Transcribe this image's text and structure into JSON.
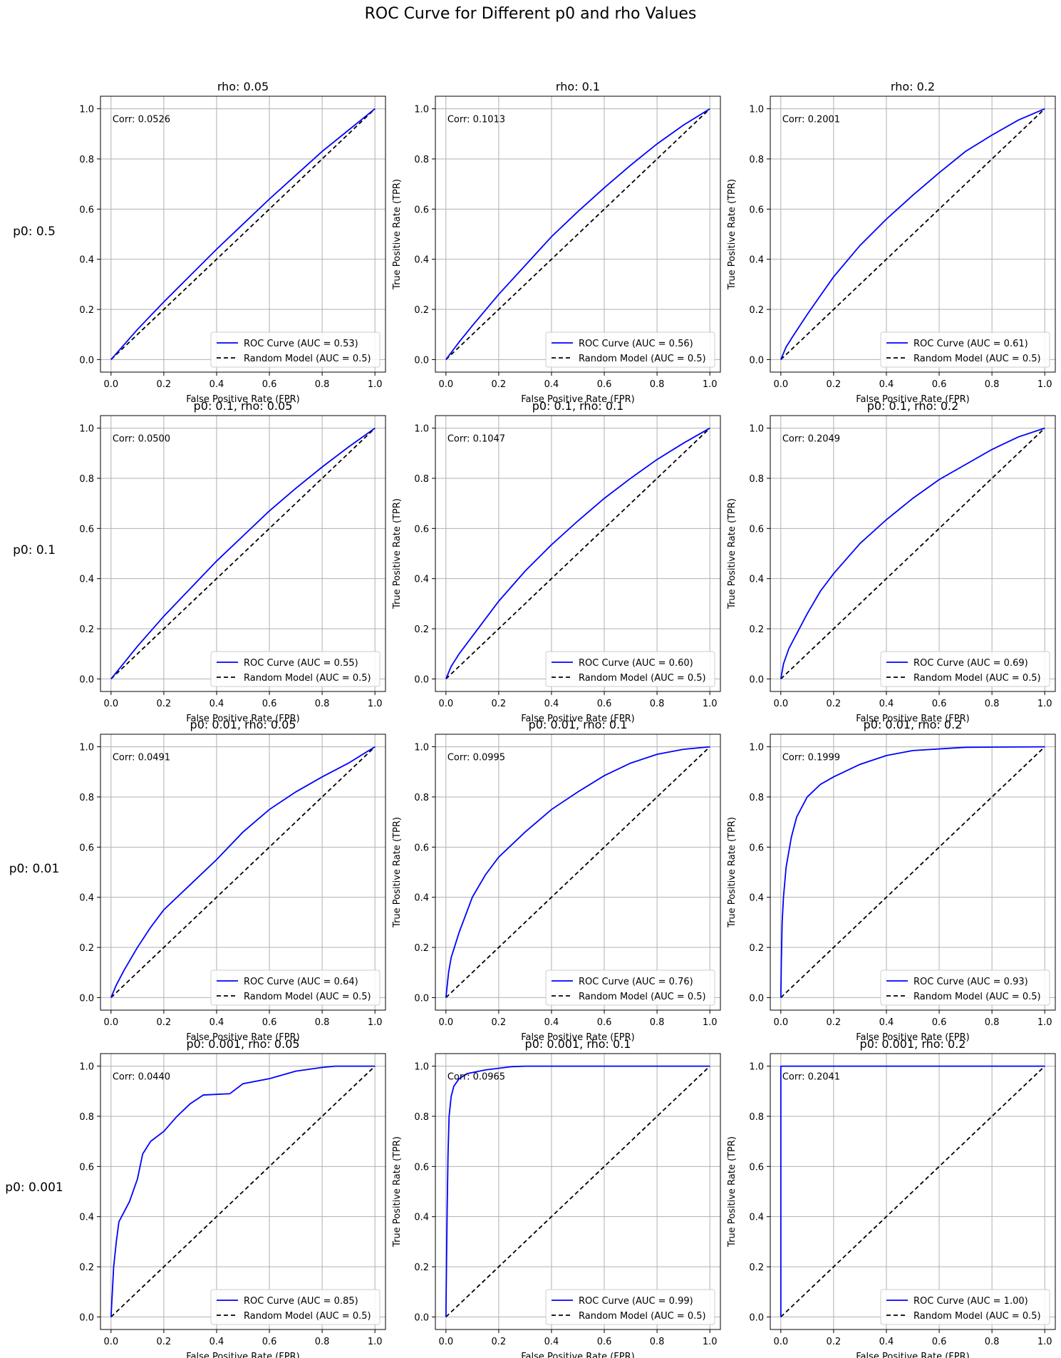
{
  "figure": {
    "title": "ROC Curve for Different p0 and rho Values"
  },
  "axes_common": {
    "xlabel": "False Positive Rate (FPR)",
    "ylabel": "True Positive Rate (TPR)",
    "ticks": [
      "0.0",
      "0.2",
      "0.4",
      "0.6",
      "0.8",
      "1.0"
    ],
    "xlim": [
      -0.04,
      1.04
    ],
    "ylim": [
      -0.05,
      1.05
    ],
    "grid": true,
    "legend_location": "lower-right",
    "roc_label_prefix": "ROC Curve (AUC = ",
    "random_label": "Random Model (AUC = 0.5)",
    "corr_prefix": "Corr: "
  },
  "row_labels": [
    "p0: 0.5",
    "p0: 0.1",
    "p0: 0.01",
    "p0: 0.001"
  ],
  "colors": {
    "roc": "#0000ff",
    "random": "#000000",
    "grid": "#b0b0b0"
  },
  "chart_data": [
    {
      "type": "line",
      "title": "rho: 0.05",
      "auc": "0.53",
      "corr": "0.0526",
      "show_ylabel": false,
      "x": [
        0,
        0.05,
        0.1,
        0.2,
        0.3,
        0.4,
        0.5,
        0.6,
        0.7,
        0.8,
        0.9,
        1.0
      ],
      "y": [
        0,
        0.06,
        0.12,
        0.23,
        0.335,
        0.44,
        0.54,
        0.64,
        0.735,
        0.83,
        0.915,
        1.0
      ]
    },
    {
      "type": "line",
      "title": "rho: 0.1",
      "auc": "0.56",
      "corr": "0.1013",
      "show_ylabel": true,
      "x": [
        0,
        0.05,
        0.1,
        0.2,
        0.3,
        0.4,
        0.5,
        0.6,
        0.7,
        0.8,
        0.9,
        1.0
      ],
      "y": [
        0,
        0.07,
        0.135,
        0.26,
        0.375,
        0.49,
        0.59,
        0.685,
        0.775,
        0.86,
        0.935,
        1.0
      ]
    },
    {
      "type": "line",
      "title": "rho: 0.2",
      "auc": "0.61",
      "corr": "0.2001",
      "show_ylabel": true,
      "x": [
        0,
        0.02,
        0.05,
        0.1,
        0.2,
        0.3,
        0.4,
        0.5,
        0.6,
        0.7,
        0.8,
        0.9,
        1.0
      ],
      "y": [
        0,
        0.05,
        0.1,
        0.18,
        0.33,
        0.455,
        0.56,
        0.655,
        0.745,
        0.83,
        0.895,
        0.955,
        1.0
      ]
    },
    {
      "type": "line",
      "title": "p0: 0.1, rho: 0.05",
      "auc": "0.55",
      "corr": "0.0500",
      "show_ylabel": false,
      "x": [
        0,
        0.05,
        0.1,
        0.2,
        0.3,
        0.4,
        0.5,
        0.6,
        0.7,
        0.8,
        0.9,
        1.0
      ],
      "y": [
        0,
        0.065,
        0.13,
        0.25,
        0.36,
        0.47,
        0.57,
        0.67,
        0.76,
        0.845,
        0.925,
        1.0
      ]
    },
    {
      "type": "line",
      "title": "p0: 0.1, rho: 0.1",
      "auc": "0.60",
      "corr": "0.1047",
      "show_ylabel": true,
      "x": [
        0,
        0.02,
        0.05,
        0.1,
        0.2,
        0.3,
        0.4,
        0.5,
        0.6,
        0.7,
        0.8,
        0.9,
        1.0
      ],
      "y": [
        0,
        0.05,
        0.1,
        0.17,
        0.31,
        0.43,
        0.535,
        0.63,
        0.72,
        0.8,
        0.875,
        0.94,
        1.0
      ]
    },
    {
      "type": "line",
      "title": "p0: 0.1, rho: 0.2",
      "auc": "0.69",
      "corr": "0.2049",
      "show_ylabel": true,
      "x": [
        0,
        0.01,
        0.03,
        0.05,
        0.1,
        0.15,
        0.2,
        0.3,
        0.4,
        0.5,
        0.6,
        0.7,
        0.8,
        0.9,
        1.0
      ],
      "y": [
        0,
        0.06,
        0.12,
        0.16,
        0.26,
        0.35,
        0.42,
        0.54,
        0.635,
        0.72,
        0.795,
        0.855,
        0.915,
        0.965,
        1.0
      ]
    },
    {
      "type": "line",
      "title": "p0: 0.01, rho: 0.05",
      "auc": "0.64",
      "corr": "0.0491",
      "show_ylabel": false,
      "x": [
        0,
        0.02,
        0.05,
        0.1,
        0.15,
        0.2,
        0.3,
        0.4,
        0.5,
        0.6,
        0.7,
        0.8,
        0.9,
        1.0
      ],
      "y": [
        0,
        0.05,
        0.11,
        0.2,
        0.28,
        0.35,
        0.45,
        0.55,
        0.66,
        0.75,
        0.82,
        0.88,
        0.935,
        1.0
      ]
    },
    {
      "type": "line",
      "title": "p0: 0.01, rho: 0.1",
      "auc": "0.76",
      "corr": "0.0995",
      "show_ylabel": true,
      "x": [
        0,
        0.005,
        0.01,
        0.02,
        0.05,
        0.1,
        0.15,
        0.2,
        0.3,
        0.4,
        0.5,
        0.6,
        0.7,
        0.8,
        0.9,
        1.0
      ],
      "y": [
        0,
        0.05,
        0.1,
        0.16,
        0.26,
        0.4,
        0.49,
        0.56,
        0.66,
        0.75,
        0.82,
        0.885,
        0.935,
        0.97,
        0.99,
        1.0
      ]
    },
    {
      "type": "line",
      "title": "p0: 0.01, rho: 0.2",
      "auc": "0.93",
      "corr": "0.1999",
      "show_ylabel": true,
      "x": [
        0,
        0.002,
        0.005,
        0.01,
        0.02,
        0.04,
        0.06,
        0.1,
        0.15,
        0.2,
        0.3,
        0.4,
        0.5,
        0.7,
        1.0
      ],
      "y": [
        0,
        0.15,
        0.3,
        0.4,
        0.52,
        0.64,
        0.72,
        0.8,
        0.85,
        0.88,
        0.93,
        0.965,
        0.985,
        0.998,
        1.0
      ]
    },
    {
      "type": "line",
      "title": "p0: 0.001, rho: 0.05",
      "auc": "0.85",
      "corr": "0.0440",
      "show_ylabel": false,
      "x": [
        0,
        0.005,
        0.01,
        0.02,
        0.03,
        0.05,
        0.07,
        0.1,
        0.12,
        0.15,
        0.2,
        0.25,
        0.3,
        0.35,
        0.45,
        0.5,
        0.6,
        0.7,
        0.8,
        0.85,
        1.0
      ],
      "y": [
        0,
        0.1,
        0.2,
        0.3,
        0.38,
        0.42,
        0.46,
        0.55,
        0.65,
        0.7,
        0.74,
        0.8,
        0.85,
        0.885,
        0.89,
        0.93,
        0.95,
        0.98,
        0.995,
        1.0,
        1.0
      ]
    },
    {
      "type": "line",
      "title": "p0: 0.001, rho: 0.1",
      "auc": "0.99",
      "corr": "0.0965",
      "show_ylabel": true,
      "x": [
        0,
        0.002,
        0.005,
        0.008,
        0.012,
        0.02,
        0.03,
        0.05,
        0.08,
        0.15,
        0.25,
        0.3,
        1.0
      ],
      "y": [
        0,
        0.2,
        0.45,
        0.65,
        0.8,
        0.88,
        0.92,
        0.95,
        0.97,
        0.985,
        0.998,
        1.0,
        1.0
      ]
    },
    {
      "type": "line",
      "title": "p0: 0.001, rho: 0.2",
      "auc": "1.00",
      "corr": "0.2041",
      "show_ylabel": true,
      "x": [
        0,
        0.0,
        0.005,
        0.2,
        1.0
      ],
      "y": [
        0,
        0.999,
        1.0,
        1.0,
        1.0
      ]
    }
  ]
}
